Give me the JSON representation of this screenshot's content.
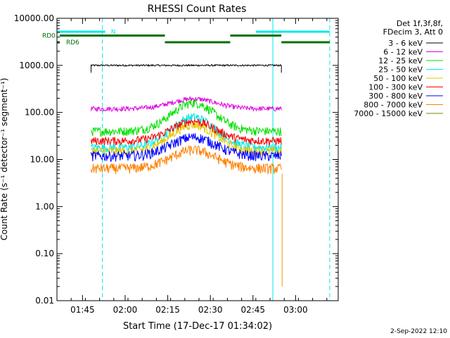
{
  "chart_data": {
    "type": "line",
    "title": "RHESSI Count Rates",
    "xlabel": "Start Time (17-Dec-17 01:34:02)",
    "ylabel": "Count Rate (s⁻¹ detector⁻¹ segment⁻¹)",
    "y_scale": "log",
    "ylim": [
      0.01,
      10000
    ],
    "xlim": [
      "01:36",
      "03:15"
    ],
    "x_ticks": [
      "01:45",
      "02:00",
      "02:15",
      "02:30",
      "02:45",
      "03:00"
    ],
    "y_ticks": [
      "0.01",
      "0.10",
      "1.00",
      "10.00",
      "100.00",
      "1000.00",
      "10000.00"
    ],
    "legend_header": [
      "Det 1f,3f,8f,",
      "FDecim 3, Att 0"
    ],
    "legend_placement": "right",
    "data_start": "01:48",
    "data_end": "02:55",
    "flare_peak": "02:24",
    "series": [
      {
        "name": "3 - 6 keV",
        "color": "#000000",
        "base": 1000,
        "peak": 1000,
        "noise": 0.04
      },
      {
        "name": "6 - 12 keV",
        "color": "#e000e0",
        "base": 120,
        "peak": 195,
        "noise": 0.12
      },
      {
        "name": "12 - 25 keV",
        "color": "#00e000",
        "base": 40,
        "peak": 160,
        "noise": 0.22
      },
      {
        "name": "25 - 50 keV",
        "color": "#00e8e8",
        "base": 18,
        "peak": 80,
        "noise": 0.22
      },
      {
        "name": "50 - 100 keV",
        "color": "#e0c800",
        "base": 15,
        "peak": 55,
        "noise": 0.22
      },
      {
        "name": "100 - 300 keV",
        "color": "#ff0000",
        "base": 25,
        "peak": 65,
        "noise": 0.2
      },
      {
        "name": "300 - 800 keV",
        "color": "#0000ff",
        "base": 12,
        "peak": 30,
        "noise": 0.25
      },
      {
        "name": "800 - 7000 keV",
        "color": "#ff8000",
        "base": 6.5,
        "peak": 16,
        "noise": 0.25
      },
      {
        "name": "7000 - 15000 keV",
        "color": "#808000",
        "base": 0,
        "peak": 0,
        "noise": 0
      }
    ],
    "markers": [
      {
        "label": "N",
        "color": "#00e8e8",
        "segments": [
          [
            "01:36",
            "01:53"
          ],
          [
            "02:46",
            "03:12"
          ]
        ],
        "value": 5200
      },
      {
        "label": "RD0",
        "color": "#007000",
        "segments": [
          [
            "01:37",
            "02:14"
          ],
          [
            "02:37",
            "02:55"
          ]
        ],
        "value": 4300
      },
      {
        "label": "RD6",
        "color": "#007000",
        "segments": [
          [
            "01:36",
            "01:37"
          ],
          [
            "02:14",
            "02:37"
          ],
          [
            "02:55",
            "03:12"
          ]
        ],
        "value": 3100
      }
    ],
    "vlines": [
      {
        "time": "01:52",
        "color": "#00e8e8",
        "style": "dashed"
      },
      {
        "time": "02:52",
        "color": "#00e8e8",
        "style": "solid"
      },
      {
        "time": "03:12",
        "color": "#00e8e8",
        "style": "dashed"
      },
      {
        "time": "01:36",
        "color": "#00e8e8",
        "style": "solid"
      }
    ],
    "drop": {
      "name": "800 - 7000 keV",
      "color": "#e0a000",
      "time": "02:55",
      "to": 0.02
    }
  },
  "footer": {
    "timestamp": "2-Sep-2022 12:10"
  }
}
